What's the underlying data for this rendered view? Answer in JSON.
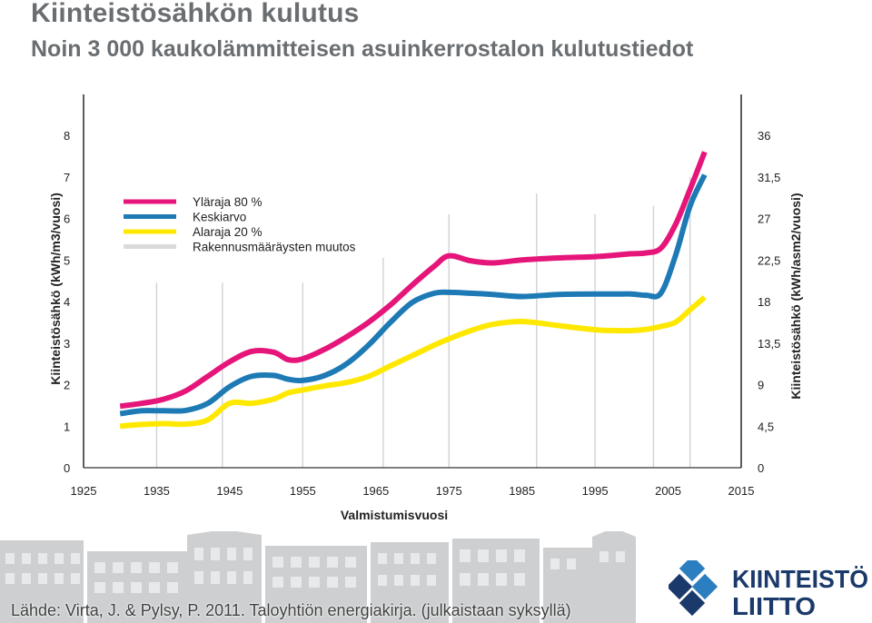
{
  "header": {
    "title": "Kiinteistösähkön kulutus",
    "subtitle": "Noin 3 000 kaukolämmitteisen asuinkerrostalon kulutustiedot"
  },
  "chart_data": {
    "type": "line",
    "xlabel": "Valmistumisvuosi",
    "ylabel_left": "Kiinteistösähkö (kWh/m3/vuosi)",
    "ylabel_right": "Kiinteistösähkö (kWh/asm2/vuosi)",
    "xlim": [
      1925,
      2015
    ],
    "ylim_left": [
      0,
      8
    ],
    "ylim_right": [
      0,
      36
    ],
    "x_ticks": [
      "1925",
      "1935",
      "1945",
      "1955",
      "1965",
      "1975",
      "1985",
      "1995",
      "2005",
      "2015"
    ],
    "y_ticks_left": [
      "0",
      "1",
      "2",
      "3",
      "4",
      "5",
      "6",
      "7",
      "8"
    ],
    "y_ticks_right": [
      "0",
      "4,5",
      "9",
      "13,5",
      "18",
      "22,5",
      "27",
      "31,5",
      "36"
    ],
    "legend_position": "top-left",
    "legend": [
      "Yläraja 80 %",
      "Keskiarvo",
      "Alaraja 20 %",
      "Rakennusmääräysten muutos"
    ],
    "regulation_change_years": [
      1935,
      1944,
      1955,
      1966,
      1975,
      1987,
      1995,
      2003,
      2008
    ],
    "series": [
      {
        "name": "Yläraja 80 %",
        "color": "#e5157a",
        "x": [
          1930,
          1933,
          1936,
          1939,
          1942,
          1945,
          1948,
          1951,
          1953,
          1955,
          1958,
          1961,
          1964,
          1967,
          1970,
          1973,
          1975,
          1978,
          1981,
          1985,
          1990,
          1995,
          1998,
          2000,
          2002,
          2004,
          2006,
          2008,
          2010
        ],
        "y": [
          1.48,
          1.55,
          1.65,
          1.85,
          2.2,
          2.55,
          2.8,
          2.78,
          2.6,
          2.62,
          2.85,
          3.15,
          3.5,
          3.92,
          4.4,
          4.85,
          5.1,
          4.98,
          4.93,
          5.0,
          5.05,
          5.08,
          5.12,
          5.15,
          5.17,
          5.28,
          5.85,
          6.7,
          7.6
        ]
      },
      {
        "name": "Keskiarvo",
        "color": "#1d7ab5",
        "x": [
          1930,
          1933,
          1936,
          1939,
          1942,
          1945,
          1948,
          1951,
          1953,
          1955,
          1958,
          1961,
          1964,
          1967,
          1970,
          1973,
          1975,
          1978,
          1981,
          1985,
          1990,
          1995,
          1998,
          2000,
          2002,
          2004,
          2006,
          2008,
          2010
        ],
        "y": [
          1.3,
          1.37,
          1.37,
          1.38,
          1.55,
          1.95,
          2.2,
          2.22,
          2.13,
          2.1,
          2.22,
          2.5,
          2.95,
          3.5,
          3.98,
          4.2,
          4.22,
          4.2,
          4.17,
          4.12,
          4.17,
          4.18,
          4.18,
          4.18,
          4.15,
          4.2,
          5.1,
          6.3,
          7.05
        ]
      },
      {
        "name": "Alaraja 20 %",
        "color": "#ffe800",
        "x": [
          1930,
          1933,
          1936,
          1939,
          1942,
          1945,
          1948,
          1951,
          1953,
          1955,
          1958,
          1961,
          1964,
          1967,
          1970,
          1973,
          1975,
          1978,
          1981,
          1985,
          1990,
          1995,
          1998,
          2000,
          2002,
          2004,
          2006,
          2008,
          2010
        ],
        "y": [
          1.0,
          1.04,
          1.06,
          1.05,
          1.15,
          1.55,
          1.55,
          1.65,
          1.8,
          1.87,
          1.97,
          2.05,
          2.2,
          2.45,
          2.7,
          2.95,
          3.1,
          3.3,
          3.45,
          3.52,
          3.42,
          3.32,
          3.3,
          3.3,
          3.33,
          3.4,
          3.5,
          3.8,
          4.1
        ]
      }
    ]
  },
  "source": {
    "text": "Lähde: Virta, J. & Pylsy, P. 2011. Taloyhtiön energiakirja. (julkaistaan syksyllä)"
  },
  "logo": {
    "line1": "KIINTEISTÖ",
    "line2": "LIITTO",
    "color": "#1b3a6b",
    "accent": "#2b7fc1"
  }
}
